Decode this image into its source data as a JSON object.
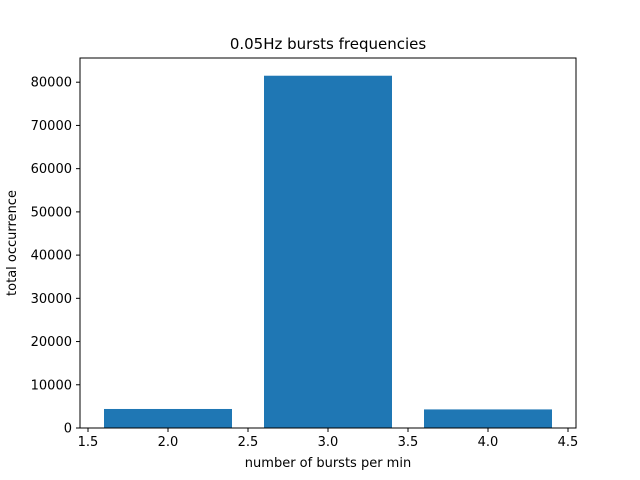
{
  "chart_data": {
    "type": "bar",
    "title": "0.05Hz bursts frequencies",
    "xlabel": "number of bursts per min",
    "ylabel": "total occurrence",
    "x": [
      2.0,
      3.0,
      4.0
    ],
    "values": [
      4400,
      81500,
      4300
    ],
    "bar_width": 0.8,
    "xlim": [
      1.45,
      4.55
    ],
    "ylim": [
      0,
      85600
    ],
    "xticks": [
      1.5,
      2.0,
      2.5,
      3.0,
      3.5,
      4.0,
      4.5
    ],
    "xtick_labels": [
      "1.5",
      "2.0",
      "2.5",
      "3.0",
      "3.5",
      "4.0",
      "4.5"
    ],
    "yticks": [
      0,
      10000,
      20000,
      30000,
      40000,
      50000,
      60000,
      70000,
      80000
    ],
    "ytick_labels": [
      "0",
      "10000",
      "20000",
      "30000",
      "40000",
      "50000",
      "60000",
      "70000",
      "80000"
    ],
    "grid": false,
    "bar_color": "#1f77b4"
  }
}
